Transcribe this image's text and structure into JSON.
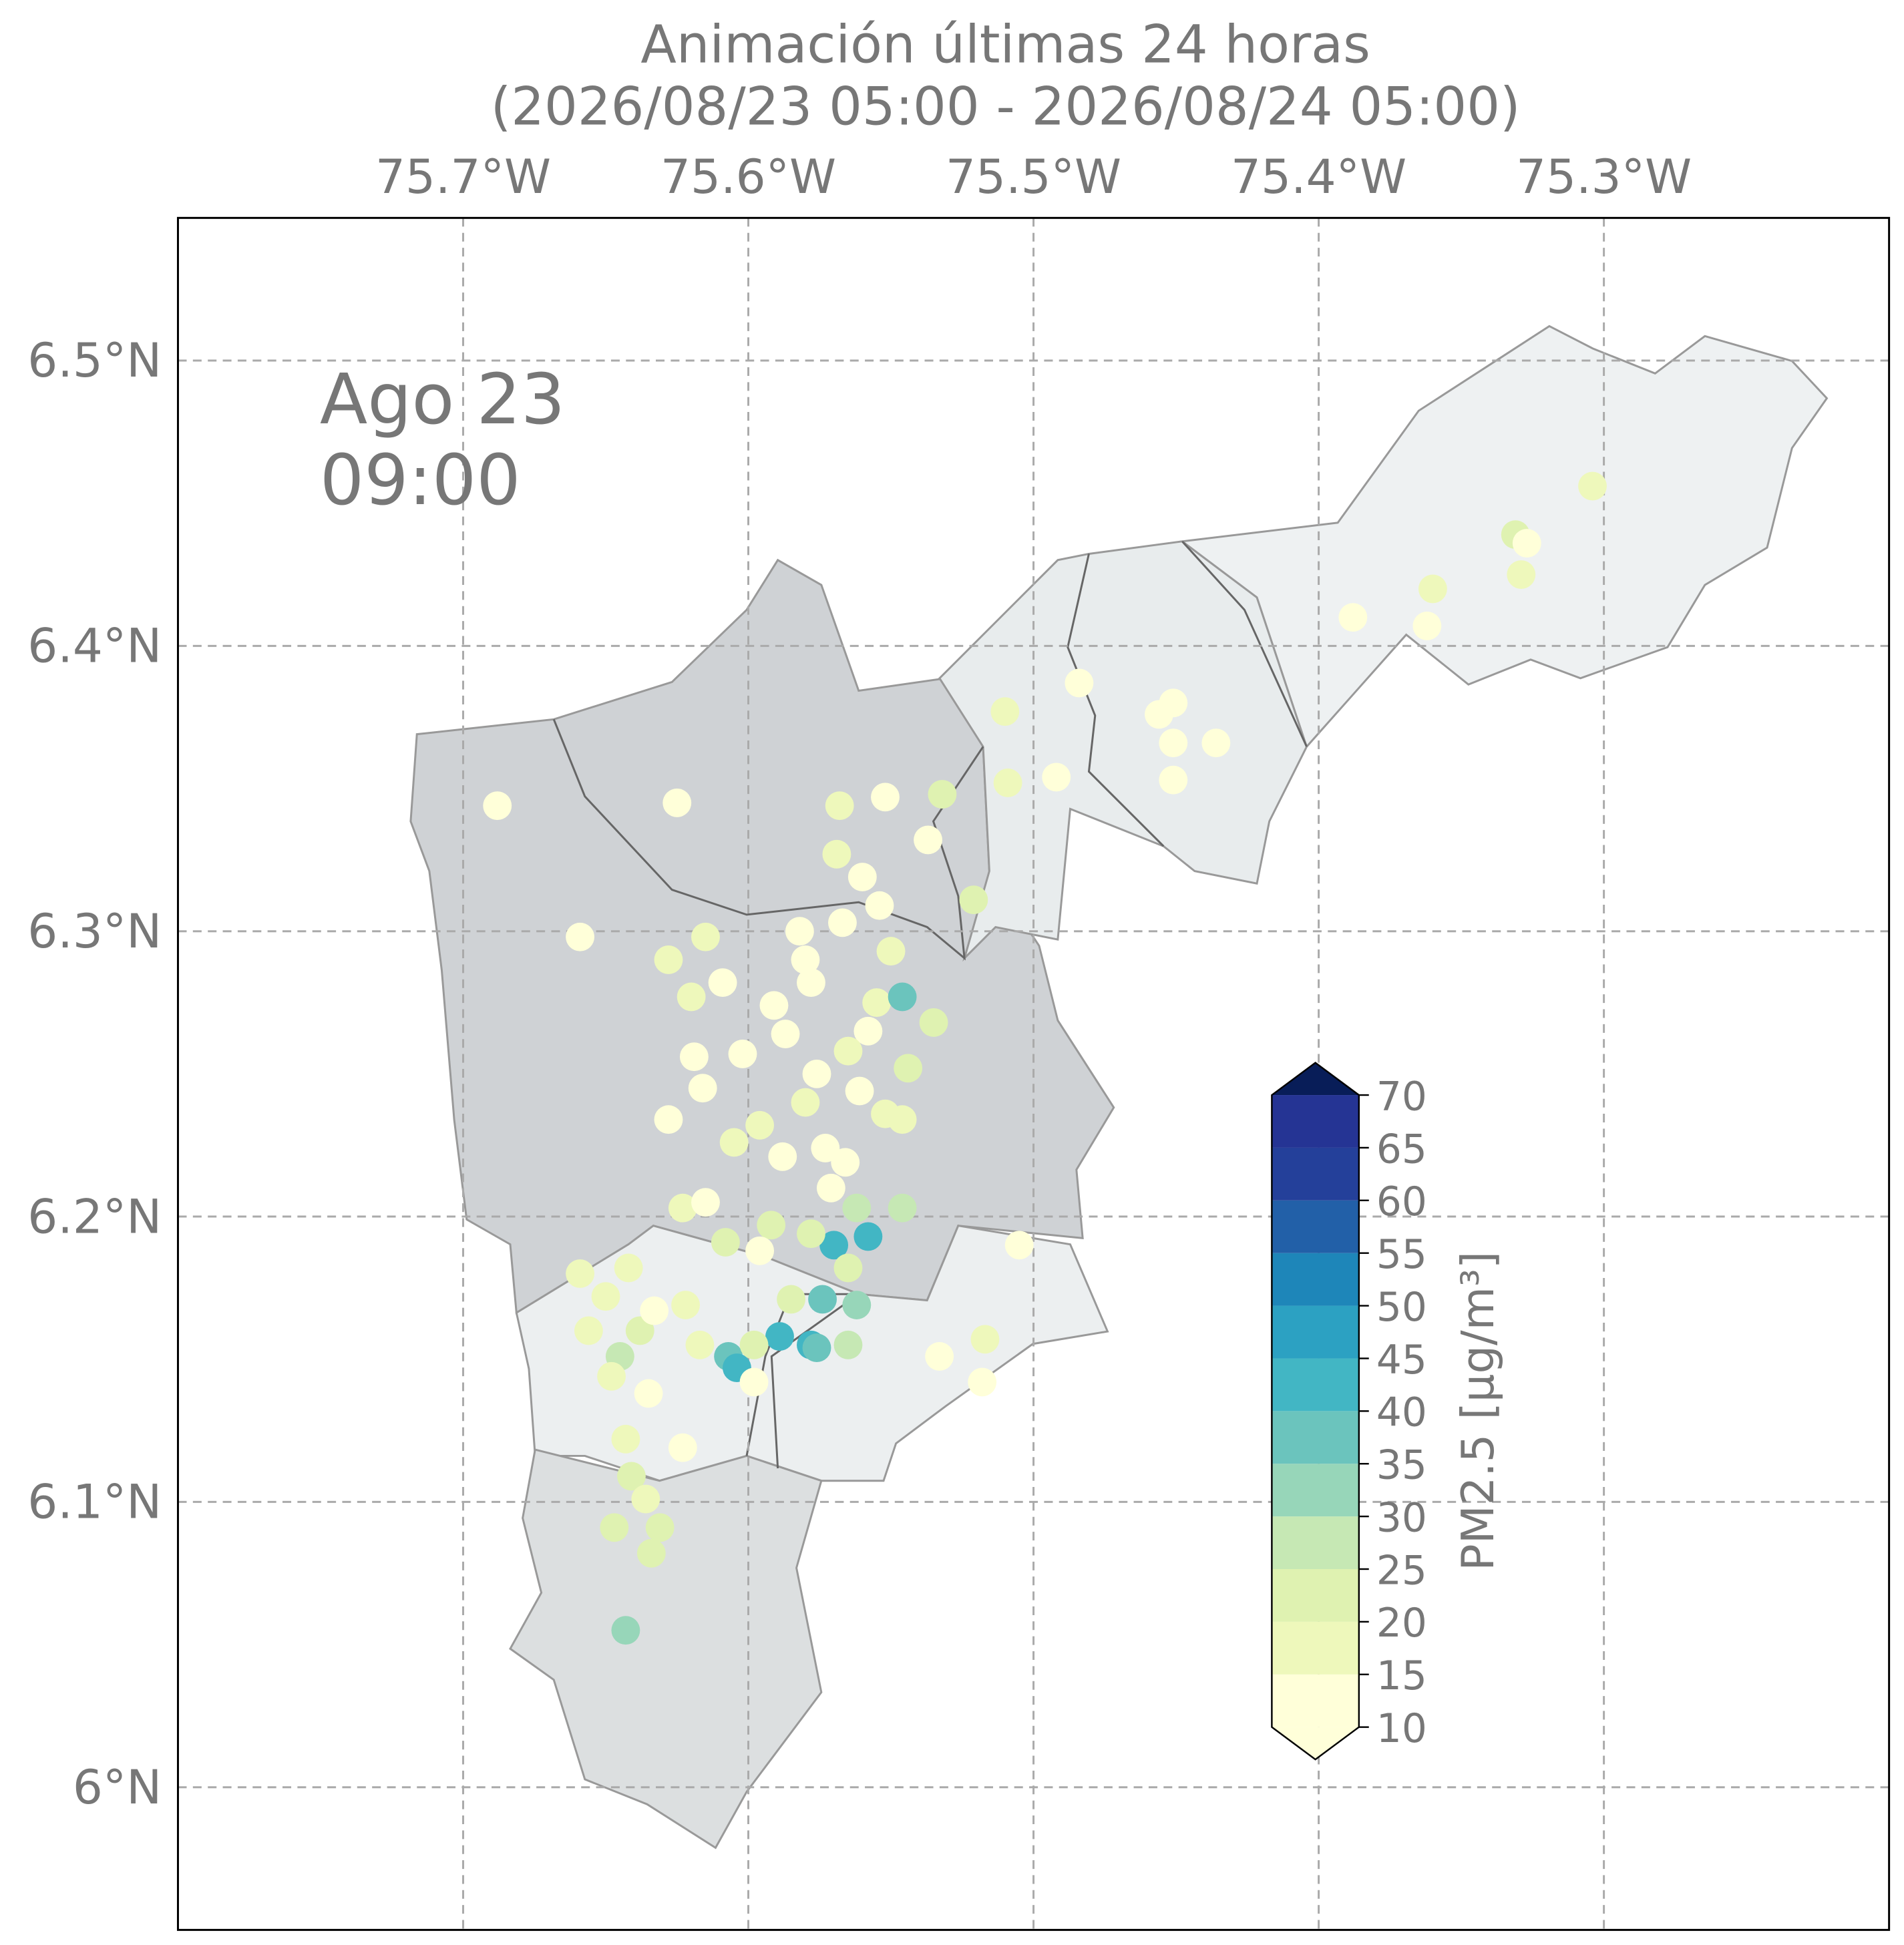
{
  "chart_data": {
    "type": "scatter",
    "title": "Animación últimas 24 horas",
    "subtitle": "(2026/08/23 05:00 - 2026/08/24 05:00)",
    "annotation_lines": [
      "Ago 23",
      "09:00"
    ],
    "xlim": [
      -75.8,
      -75.2
    ],
    "ylim": [
      5.95,
      6.55
    ],
    "xticks": [
      {
        "value": -75.7,
        "label": "75.7°W"
      },
      {
        "value": -75.6,
        "label": "75.6°W"
      },
      {
        "value": -75.5,
        "label": "75.5°W"
      },
      {
        "value": -75.4,
        "label": "75.4°W"
      },
      {
        "value": -75.3,
        "label": "75.3°W"
      }
    ],
    "yticks": [
      {
        "value": 6.0,
        "label": "6°N"
      },
      {
        "value": 6.1,
        "label": "6.1°N"
      },
      {
        "value": 6.2,
        "label": "6.2°N"
      },
      {
        "value": 6.3,
        "label": "6.3°N"
      },
      {
        "value": 6.4,
        "label": "6.4°N"
      },
      {
        "value": 6.5,
        "label": "6.5°N"
      }
    ],
    "grid": true,
    "x": [
      -75.688,
      -75.625,
      -75.659,
      -75.484,
      -75.51,
      -75.388,
      -75.362,
      -75.36,
      -75.331,
      -75.327,
      -75.329,
      -75.304,
      -75.451,
      -75.451,
      -75.436,
      -75.451,
      -75.456,
      -75.492,
      -75.509,
      -75.532,
      -75.521,
      -75.552,
      -75.568,
      -75.569,
      -75.537,
      -75.56,
      -75.554,
      -75.582,
      -75.567,
      -75.55,
      -75.628,
      -75.615,
      -75.62,
      -75.609,
      -75.58,
      -75.578,
      -75.591,
      -75.587,
      -75.555,
      -75.546,
      -75.558,
      -75.535,
      -75.619,
      -75.602,
      -75.565,
      -75.544,
      -75.628,
      -75.616,
      -75.596,
      -75.576,
      -75.58,
      -75.561,
      -75.552,
      -75.546,
      -75.605,
      -75.588,
      -75.573,
      -75.566,
      -75.571,
      -75.623,
      -75.615,
      -75.546,
      -75.562,
      -75.505,
      -75.592,
      -75.608,
      -75.596,
      -75.57,
      -75.558,
      -75.578,
      -75.565,
      -75.574,
      -75.562,
      -75.585,
      -75.589,
      -75.578,
      -75.576,
      -75.565,
      -75.607,
      -75.604,
      -75.598,
      -75.659,
      -75.65,
      -75.642,
      -75.656,
      -75.645,
      -75.638,
      -75.633,
      -75.622,
      -75.617,
      -75.648,
      -75.635,
      -75.598,
      -75.643,
      -75.623,
      -75.533,
      -75.517,
      -75.518,
      -75.641,
      -75.636,
      -75.647,
      -75.631,
      -75.634,
      -75.643
    ],
    "y": [
      6.344,
      6.345,
      6.298,
      6.387,
      6.377,
      6.41,
      6.407,
      6.42,
      6.439,
      6.436,
      6.425,
      6.456,
      6.38,
      6.366,
      6.366,
      6.353,
      6.376,
      6.354,
      6.352,
      6.348,
      6.311,
      6.347,
      6.344,
      6.327,
      6.332,
      6.319,
      6.309,
      6.3,
      6.303,
      6.293,
      6.29,
      6.298,
      6.277,
      6.282,
      6.29,
      6.282,
      6.274,
      6.264,
      6.275,
      6.277,
      6.265,
      6.268,
      6.256,
      6.257,
      6.258,
      6.252,
      6.234,
      6.245,
      6.232,
      6.25,
      6.24,
      6.244,
      6.236,
      6.234,
      6.226,
      6.221,
      6.224,
      6.219,
      6.21,
      6.203,
      6.205,
      6.203,
      6.203,
      6.19,
      6.197,
      6.191,
      6.188,
      6.19,
      6.193,
      6.194,
      6.182,
      6.171,
      6.169,
      6.171,
      6.158,
      6.155,
      6.154,
      6.155,
      6.151,
      6.147,
      6.155,
      6.18,
      6.172,
      6.182,
      6.16,
      6.151,
      6.16,
      6.167,
      6.169,
      6.155,
      6.144,
      6.138,
      6.142,
      6.122,
      6.119,
      6.151,
      6.157,
      6.142,
      6.109,
      6.101,
      6.091,
      6.091,
      6.082,
      6.055
    ],
    "values": [
      12,
      12,
      14,
      12,
      16,
      14,
      13,
      18,
      20,
      14,
      15,
      18,
      14,
      12,
      14,
      14,
      12,
      14,
      18,
      20,
      22,
      14,
      18,
      16,
      14,
      13,
      12,
      12,
      14,
      16,
      18,
      17,
      15,
      14,
      13,
      14,
      12,
      12,
      18,
      38,
      12,
      20,
      12,
      14,
      18,
      20,
      12,
      14,
      16,
      14,
      18,
      14,
      16,
      18,
      18,
      14,
      13,
      14,
      14,
      18,
      13,
      26,
      26,
      12,
      24,
      20,
      14,
      42,
      40,
      22,
      24,
      35,
      32,
      24,
      40,
      42,
      36,
      28,
      38,
      44,
      22,
      18,
      16,
      16,
      18,
      28,
      22,
      14,
      16,
      18,
      16,
      14,
      14,
      16,
      14,
      14,
      16,
      14,
      20,
      16,
      22,
      20,
      20,
      30
    ],
    "colorbar": {
      "label": "PM2.5 [μg/m³]",
      "ticks": [
        10,
        15,
        20,
        25,
        30,
        35,
        40,
        45,
        50,
        55,
        60,
        65,
        70
      ],
      "colors": [
        "#ffffd9",
        "#eef8bb",
        "#dff2b1",
        "#c6e8b4",
        "#97d6b9",
        "#6bc4bd",
        "#42b6c4",
        "#2ca1c2",
        "#1e86b9",
        "#2260a8",
        "#24409a",
        "#253494"
      ],
      "under_color": "#ffffd9",
      "over_color": "#081d58"
    }
  }
}
